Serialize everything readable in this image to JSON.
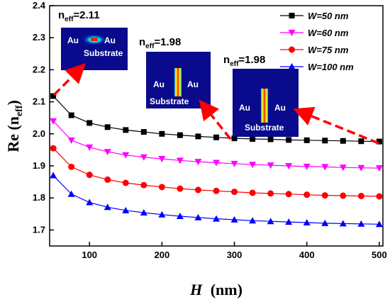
{
  "chart_data": {
    "type": "line",
    "xlabel": "H (nm)",
    "xlabel_var": "H",
    "xlabel_unit": "(nm)",
    "ylabel": "Re (neff)",
    "ylabel_main": "Re (n",
    "ylabel_sub": "eff",
    "ylabel_close": ")",
    "xlim": [
      45,
      505
    ],
    "ylim": [
      1.65,
      2.4
    ],
    "xticks": [
      100,
      200,
      300,
      400,
      500
    ],
    "yticks": [
      1.7,
      1.8,
      1.9,
      2.0,
      2.1,
      2.2,
      2.3,
      2.4
    ],
    "x": [
      50,
      75,
      100,
      125,
      150,
      175,
      200,
      225,
      250,
      275,
      300,
      325,
      350,
      375,
      400,
      425,
      450,
      475,
      500
    ],
    "series": [
      {
        "name": "W=50 nm",
        "color": "#000000",
        "marker": "square",
        "values": [
          2.118,
          2.058,
          2.034,
          2.021,
          2.012,
          2.006,
          2.0,
          1.996,
          1.992,
          1.989,
          1.986,
          1.984,
          1.983,
          1.981,
          1.98,
          1.979,
          1.978,
          1.977,
          1.976
        ]
      },
      {
        "name": "W=60 nm",
        "color": "#ff00ff",
        "marker": "triangle-down",
        "values": [
          2.04,
          1.98,
          1.958,
          1.944,
          1.934,
          1.927,
          1.922,
          1.917,
          1.913,
          1.91,
          1.907,
          1.904,
          1.902,
          1.9,
          1.898,
          1.897,
          1.895,
          1.894,
          1.893
        ]
      },
      {
        "name": "W=75 nm",
        "color": "#ff0000",
        "marker": "circle",
        "values": [
          1.955,
          1.897,
          1.872,
          1.857,
          1.847,
          1.84,
          1.834,
          1.829,
          1.825,
          1.822,
          1.819,
          1.816,
          1.814,
          1.812,
          1.81,
          1.808,
          1.807,
          1.806,
          1.805
        ]
      },
      {
        "name": "W=100 nm",
        "color": "#0000ff",
        "marker": "triangle-up",
        "values": [
          1.87,
          1.812,
          1.786,
          1.771,
          1.761,
          1.754,
          1.748,
          1.743,
          1.739,
          1.735,
          1.732,
          1.729,
          1.727,
          1.725,
          1.723,
          1.721,
          1.72,
          1.719,
          1.718
        ]
      }
    ],
    "legend_position": "top-right",
    "annotations": [
      {
        "prefix": "n",
        "sub": "eff",
        "suffix": "=2.11"
      },
      {
        "prefix": "n",
        "sub": "eff",
        "suffix": "=1.98"
      },
      {
        "prefix": "n",
        "sub": "eff",
        "suffix": "=1.98"
      }
    ],
    "insets": [
      {
        "labels": [
          "Au",
          "Au",
          "Substrate"
        ]
      },
      {
        "labels": [
          "Au",
          "Au",
          "Substrate"
        ]
      },
      {
        "labels": [
          "Au",
          "Au",
          "Substrate"
        ]
      }
    ]
  }
}
